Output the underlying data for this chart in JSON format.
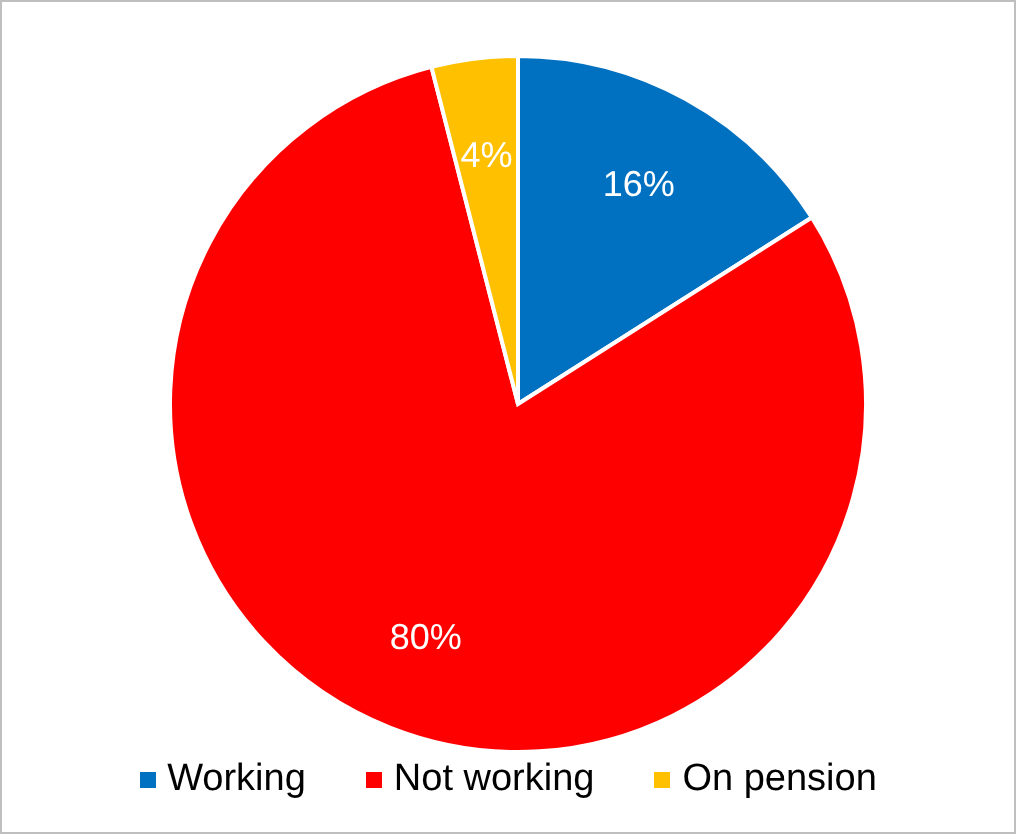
{
  "chart_data": {
    "type": "pie",
    "categories": [
      "Working",
      "Not working",
      "On pension"
    ],
    "values": [
      16,
      80,
      4
    ],
    "colors": [
      "#0070c0",
      "#ff0000",
      "#ffc000"
    ],
    "value_labels": [
      "16%",
      "80%",
      "4%"
    ],
    "legend": "bottom"
  }
}
